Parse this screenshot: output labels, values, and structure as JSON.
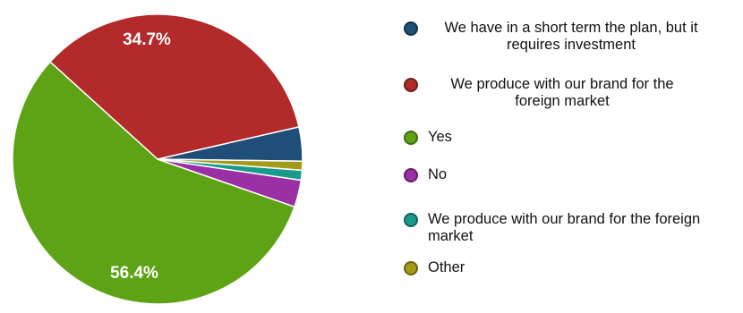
{
  "chart_data": {
    "type": "pie",
    "slices": [
      {
        "label": "We have in a short term the plan, but it requires investment",
        "value": 3.8,
        "color": "#1f4e79"
      },
      {
        "label": "We produce with our brand for the foreign market",
        "value": 34.7,
        "color": "#b22a2a",
        "display": "34.7%"
      },
      {
        "label": "Yes",
        "value": 56.4,
        "color": "#5ea316",
        "display": "56.4%"
      },
      {
        "label": "No",
        "value": 3.0,
        "color": "#9b2fa6"
      },
      {
        "label": "We produce with our brand for the foreign market",
        "value": 1.1,
        "color": "#1a9a8c"
      },
      {
        "label": "Other",
        "value": 1.0,
        "color": "#a39a1a"
      }
    ],
    "legend_placement": "right"
  },
  "legend": [
    {
      "text": "We have in a short term the plan, but it requires investment",
      "color": "#1f4e79",
      "centered": true
    },
    {
      "text": "We produce with our brand for the foreign market",
      "color": "#b22a2a",
      "centered": true
    },
    {
      "text": "Yes",
      "color": "#5ea316",
      "centered": false
    },
    {
      "text": "No",
      "color": "#9b2fa6",
      "centered": false
    },
    {
      "text": "We produce with our brand for the foreign market",
      "color": "#1a9a8c",
      "centered": false
    },
    {
      "text": "Other",
      "color": "#a39a1a",
      "centered": false
    }
  ]
}
